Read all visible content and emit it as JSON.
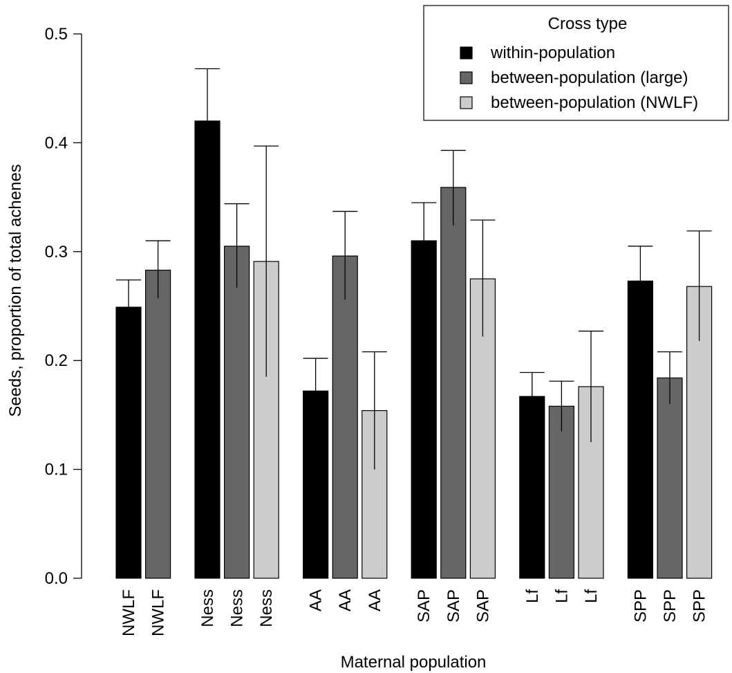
{
  "chart_data": {
    "type": "bar",
    "title": "",
    "xlabel": "Maternal population",
    "ylabel": "Seeds, proportion of total achenes",
    "ylim": [
      0,
      0.5
    ],
    "yticks": [
      "0.0",
      "0.1",
      "0.2",
      "0.3",
      "0.4",
      "0.5"
    ],
    "grid": false,
    "legend": {
      "title": "Cross type",
      "placement": "top-right",
      "entries": [
        "within-population",
        "between-population (large)",
        "between-population (NWLF)"
      ]
    },
    "series_colors": {
      "within-population": "#000000",
      "between-population (large)": "#666666",
      "between-population (NWLF)": "#cccccc"
    },
    "groups": [
      {
        "population": "NWLF",
        "bars": [
          {
            "label": "NWLF",
            "series": "within-population",
            "value": 0.249,
            "err_low": 0.249,
            "err_high": 0.274
          },
          {
            "label": "NWLF",
            "series": "between-population (large)",
            "value": 0.283,
            "err_low": 0.257,
            "err_high": 0.31
          }
        ]
      },
      {
        "population": "Ness",
        "bars": [
          {
            "label": "Ness",
            "series": "within-population",
            "value": 0.42,
            "err_low": 0.42,
            "err_high": 0.468
          },
          {
            "label": "Ness",
            "series": "between-population (large)",
            "value": 0.305,
            "err_low": 0.267,
            "err_high": 0.344
          },
          {
            "label": "Ness",
            "series": "between-population (NWLF)",
            "value": 0.291,
            "err_low": 0.185,
            "err_high": 0.397
          }
        ]
      },
      {
        "population": "AA",
        "bars": [
          {
            "label": "AA",
            "series": "within-population",
            "value": 0.172,
            "err_low": 0.172,
            "err_high": 0.202
          },
          {
            "label": "AA",
            "series": "between-population (large)",
            "value": 0.296,
            "err_low": 0.256,
            "err_high": 0.337
          },
          {
            "label": "AA",
            "series": "between-population (NWLF)",
            "value": 0.154,
            "err_low": 0.1,
            "err_high": 0.208
          }
        ]
      },
      {
        "population": "SAP",
        "bars": [
          {
            "label": "SAP",
            "series": "within-population",
            "value": 0.31,
            "err_low": 0.31,
            "err_high": 0.345
          },
          {
            "label": "SAP",
            "series": "between-population (large)",
            "value": 0.359,
            "err_low": 0.324,
            "err_high": 0.393
          },
          {
            "label": "SAP",
            "series": "between-population (NWLF)",
            "value": 0.275,
            "err_low": 0.222,
            "err_high": 0.329
          }
        ]
      },
      {
        "population": "Lf",
        "bars": [
          {
            "label": "Lf",
            "series": "within-population",
            "value": 0.167,
            "err_low": 0.167,
            "err_high": 0.189
          },
          {
            "label": "Lf",
            "series": "between-population (large)",
            "value": 0.158,
            "err_low": 0.135,
            "err_high": 0.181
          },
          {
            "label": "Lf",
            "series": "between-population (NWLF)",
            "value": 0.176,
            "err_low": 0.125,
            "err_high": 0.227
          }
        ]
      },
      {
        "population": "SPP",
        "bars": [
          {
            "label": "SPP",
            "series": "within-population",
            "value": 0.273,
            "err_low": 0.273,
            "err_high": 0.305
          },
          {
            "label": "SPP",
            "series": "between-population (large)",
            "value": 0.184,
            "err_low": 0.16,
            "err_high": 0.208
          },
          {
            "label": "SPP",
            "series": "between-population (NWLF)",
            "value": 0.268,
            "err_low": 0.218,
            "err_high": 0.319
          }
        ]
      }
    ]
  }
}
